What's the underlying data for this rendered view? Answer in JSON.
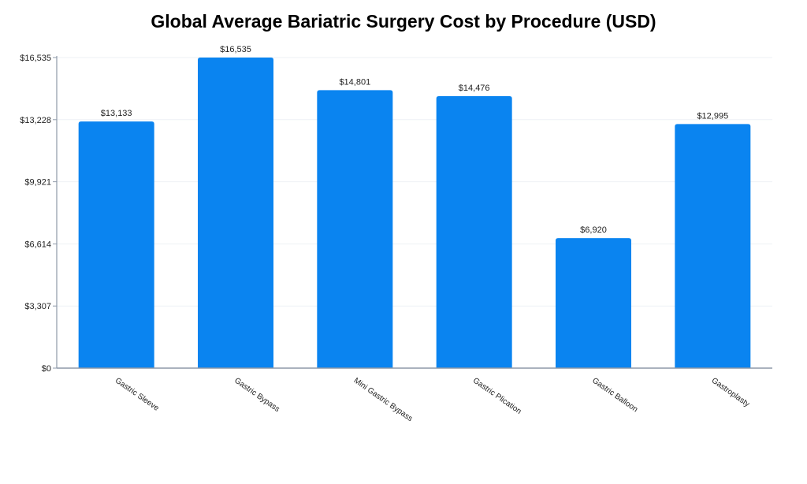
{
  "chart_data": {
    "type": "bar",
    "title": "Global Average Bariatric Surgery Cost by Procedure (USD)",
    "xlabel": "",
    "ylabel": "",
    "categories": [
      "Gastric Sleeve",
      "Gastric Bypass",
      "Mini Gastric Bypass",
      "Gastric Plication",
      "Gastric Balloon",
      "Gastroplasty"
    ],
    "values": [
      13133,
      16535,
      14801,
      14476,
      6920,
      12995
    ],
    "value_labels": [
      "$13,133",
      "$16,535",
      "$14,801",
      "$14,476",
      "$6,920",
      "$12,995"
    ],
    "ylim": [
      0,
      16535
    ],
    "yticks": [
      0,
      3307,
      6614,
      9921,
      13228,
      16535
    ],
    "ytick_labels": [
      "$0",
      "$3,307",
      "$6,614",
      "$9,921",
      "$13,228",
      "$16,535"
    ],
    "grid": true,
    "legend": "none",
    "bar_color": "#0a84f0",
    "grid_color": "#eef1f5",
    "axis_color": "#8e99a8"
  }
}
